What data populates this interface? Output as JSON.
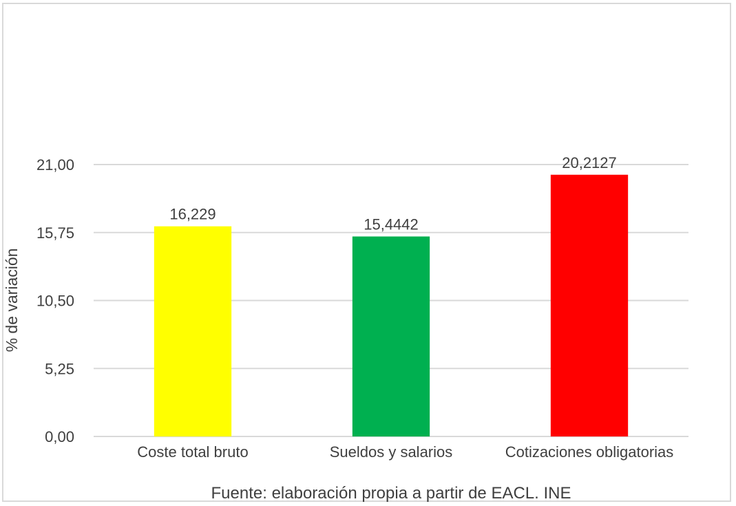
{
  "chart_data": {
    "type": "bar",
    "categories": [
      "Coste total bruto",
      "Sueldos y salarios",
      "Cotizaciones obligatorias"
    ],
    "values": [
      16.229,
      15.4442,
      20.2127
    ],
    "data_labels": [
      "16,229",
      "15,4442",
      "20,2127"
    ],
    "colors": [
      "#ffff00",
      "#00b050",
      "#ff0000"
    ],
    "title": "",
    "xlabel": "",
    "ylabel": "% de variación",
    "ylim": [
      0,
      21
    ],
    "yticks": [
      0,
      5.25,
      10.5,
      15.75,
      21
    ],
    "ytick_labels": [
      "0,00",
      "5,25",
      "10,50",
      "15,75",
      "21,00"
    ],
    "grid": true,
    "legend": "none",
    "source": "Fuente: elaboración propia a partir de EACL. INE"
  }
}
